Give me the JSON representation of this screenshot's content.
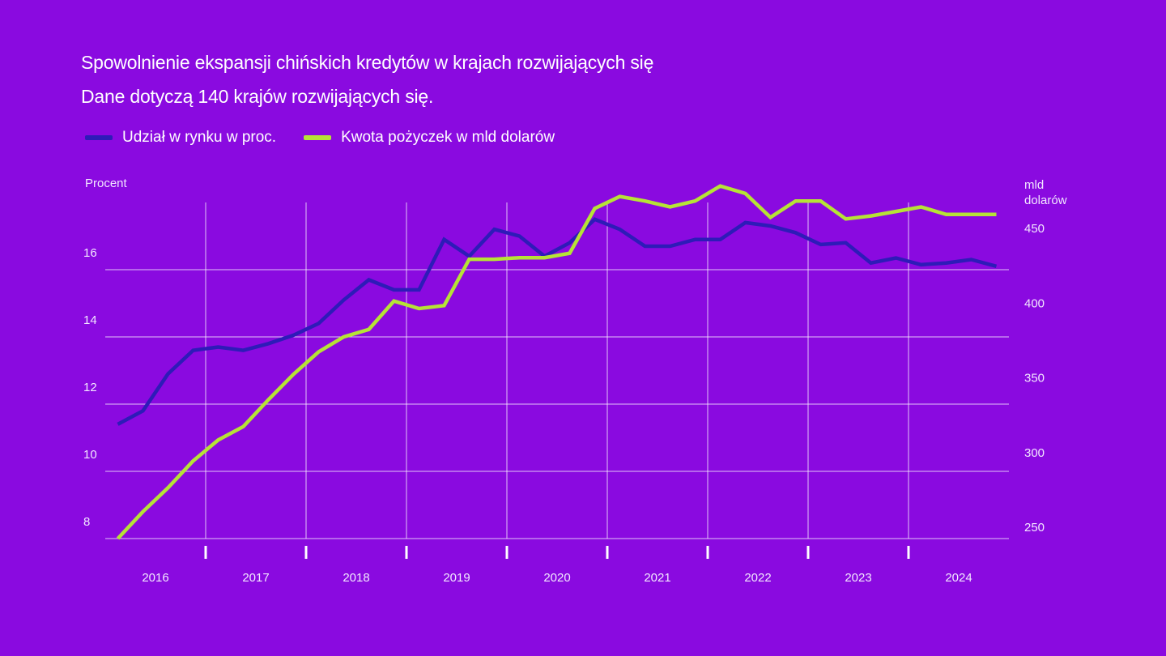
{
  "title": "Spowolnienie ekspansji chińskich kredytów w krajach rozwijających się",
  "subtitle": "Dane dotyczą 140 krajów rozwijających się.",
  "legend": [
    {
      "label": "Udział w rynku w proc.",
      "color": "#2e1bb8"
    },
    {
      "label": "Kwota pożyczek w mld dolarów",
      "color": "#b6e336"
    }
  ],
  "axis": {
    "left_title": "Procent",
    "right_title_line1": "mld",
    "right_title_line2": "dolarów"
  },
  "chart_data": {
    "type": "line",
    "title": "Spowolnienie ekspansji chińskich kredytów w krajach rozwijających się",
    "subtitle": "Dane dotyczą 140 krajów rozwijających się.",
    "x_label": "",
    "x_range": [
      2016.0,
      2025.0
    ],
    "x_ticks": [
      2016,
      2017,
      2018,
      2019,
      2020,
      2021,
      2022,
      2023,
      2024
    ],
    "x_tick_labels": [
      "2016",
      "2017",
      "2018",
      "2019",
      "2020",
      "2021",
      "2022",
      "2023",
      "2024"
    ],
    "y_left": {
      "label": "Procent",
      "range": [
        8,
        18
      ],
      "ticks": [
        8,
        10,
        12,
        14,
        16
      ]
    },
    "y_right": {
      "label": "mld dolarów",
      "range": [
        250,
        475
      ],
      "ticks": [
        250,
        300,
        350,
        400,
        450
      ]
    },
    "grid": true,
    "legend_position": "top-left",
    "series": [
      {
        "name": "Udział w rynku w proc.",
        "axis": "left",
        "color": "#2e1bb8",
        "x": [
          2016.125,
          2016.375,
          2016.625,
          2016.875,
          2017.125,
          2017.375,
          2017.625,
          2017.875,
          2018.125,
          2018.375,
          2018.625,
          2018.875,
          2019.125,
          2019.375,
          2019.625,
          2019.875,
          2020.125,
          2020.375,
          2020.625,
          2020.875,
          2021.125,
          2021.375,
          2021.625,
          2021.875,
          2022.125,
          2022.375,
          2022.625,
          2022.875,
          2023.125,
          2023.375,
          2023.625,
          2023.875,
          2024.125,
          2024.375,
          2024.625,
          2024.875
        ],
        "values": [
          11.4,
          11.8,
          12.9,
          13.6,
          13.7,
          13.6,
          13.8,
          14.05,
          14.4,
          15.1,
          15.7,
          15.4,
          15.4,
          16.9,
          16.4,
          17.2,
          17.0,
          16.4,
          16.8,
          17.5,
          17.2,
          16.7,
          16.7,
          16.9,
          16.9,
          17.4,
          17.3,
          17.1,
          16.75,
          16.8,
          16.2,
          16.35,
          16.15,
          16.2,
          16.3,
          16.1
        ]
      },
      {
        "name": "Kwota pożyczek w mld dolarów",
        "axis": "right",
        "color": "#b6e336",
        "x": [
          2016.125,
          2016.375,
          2016.625,
          2016.875,
          2017.125,
          2017.375,
          2017.625,
          2017.875,
          2018.125,
          2018.375,
          2018.625,
          2018.875,
          2019.125,
          2019.375,
          2019.625,
          2019.875,
          2020.125,
          2020.375,
          2020.625,
          2020.875,
          2021.125,
          2021.375,
          2021.625,
          2021.875,
          2022.125,
          2022.375,
          2022.625,
          2022.875,
          2023.125,
          2023.375,
          2023.625,
          2023.875,
          2024.125,
          2024.375,
          2024.625,
          2024.875
        ],
        "values": [
          250,
          268,
          284,
          302,
          316,
          325,
          343,
          360,
          375,
          385,
          390,
          409,
          404,
          406,
          437,
          437,
          438,
          438,
          441,
          471,
          479,
          476,
          472,
          476,
          486,
          481,
          465,
          476,
          476,
          464,
          466,
          469,
          472,
          467,
          467,
          467
        ]
      }
    ]
  }
}
